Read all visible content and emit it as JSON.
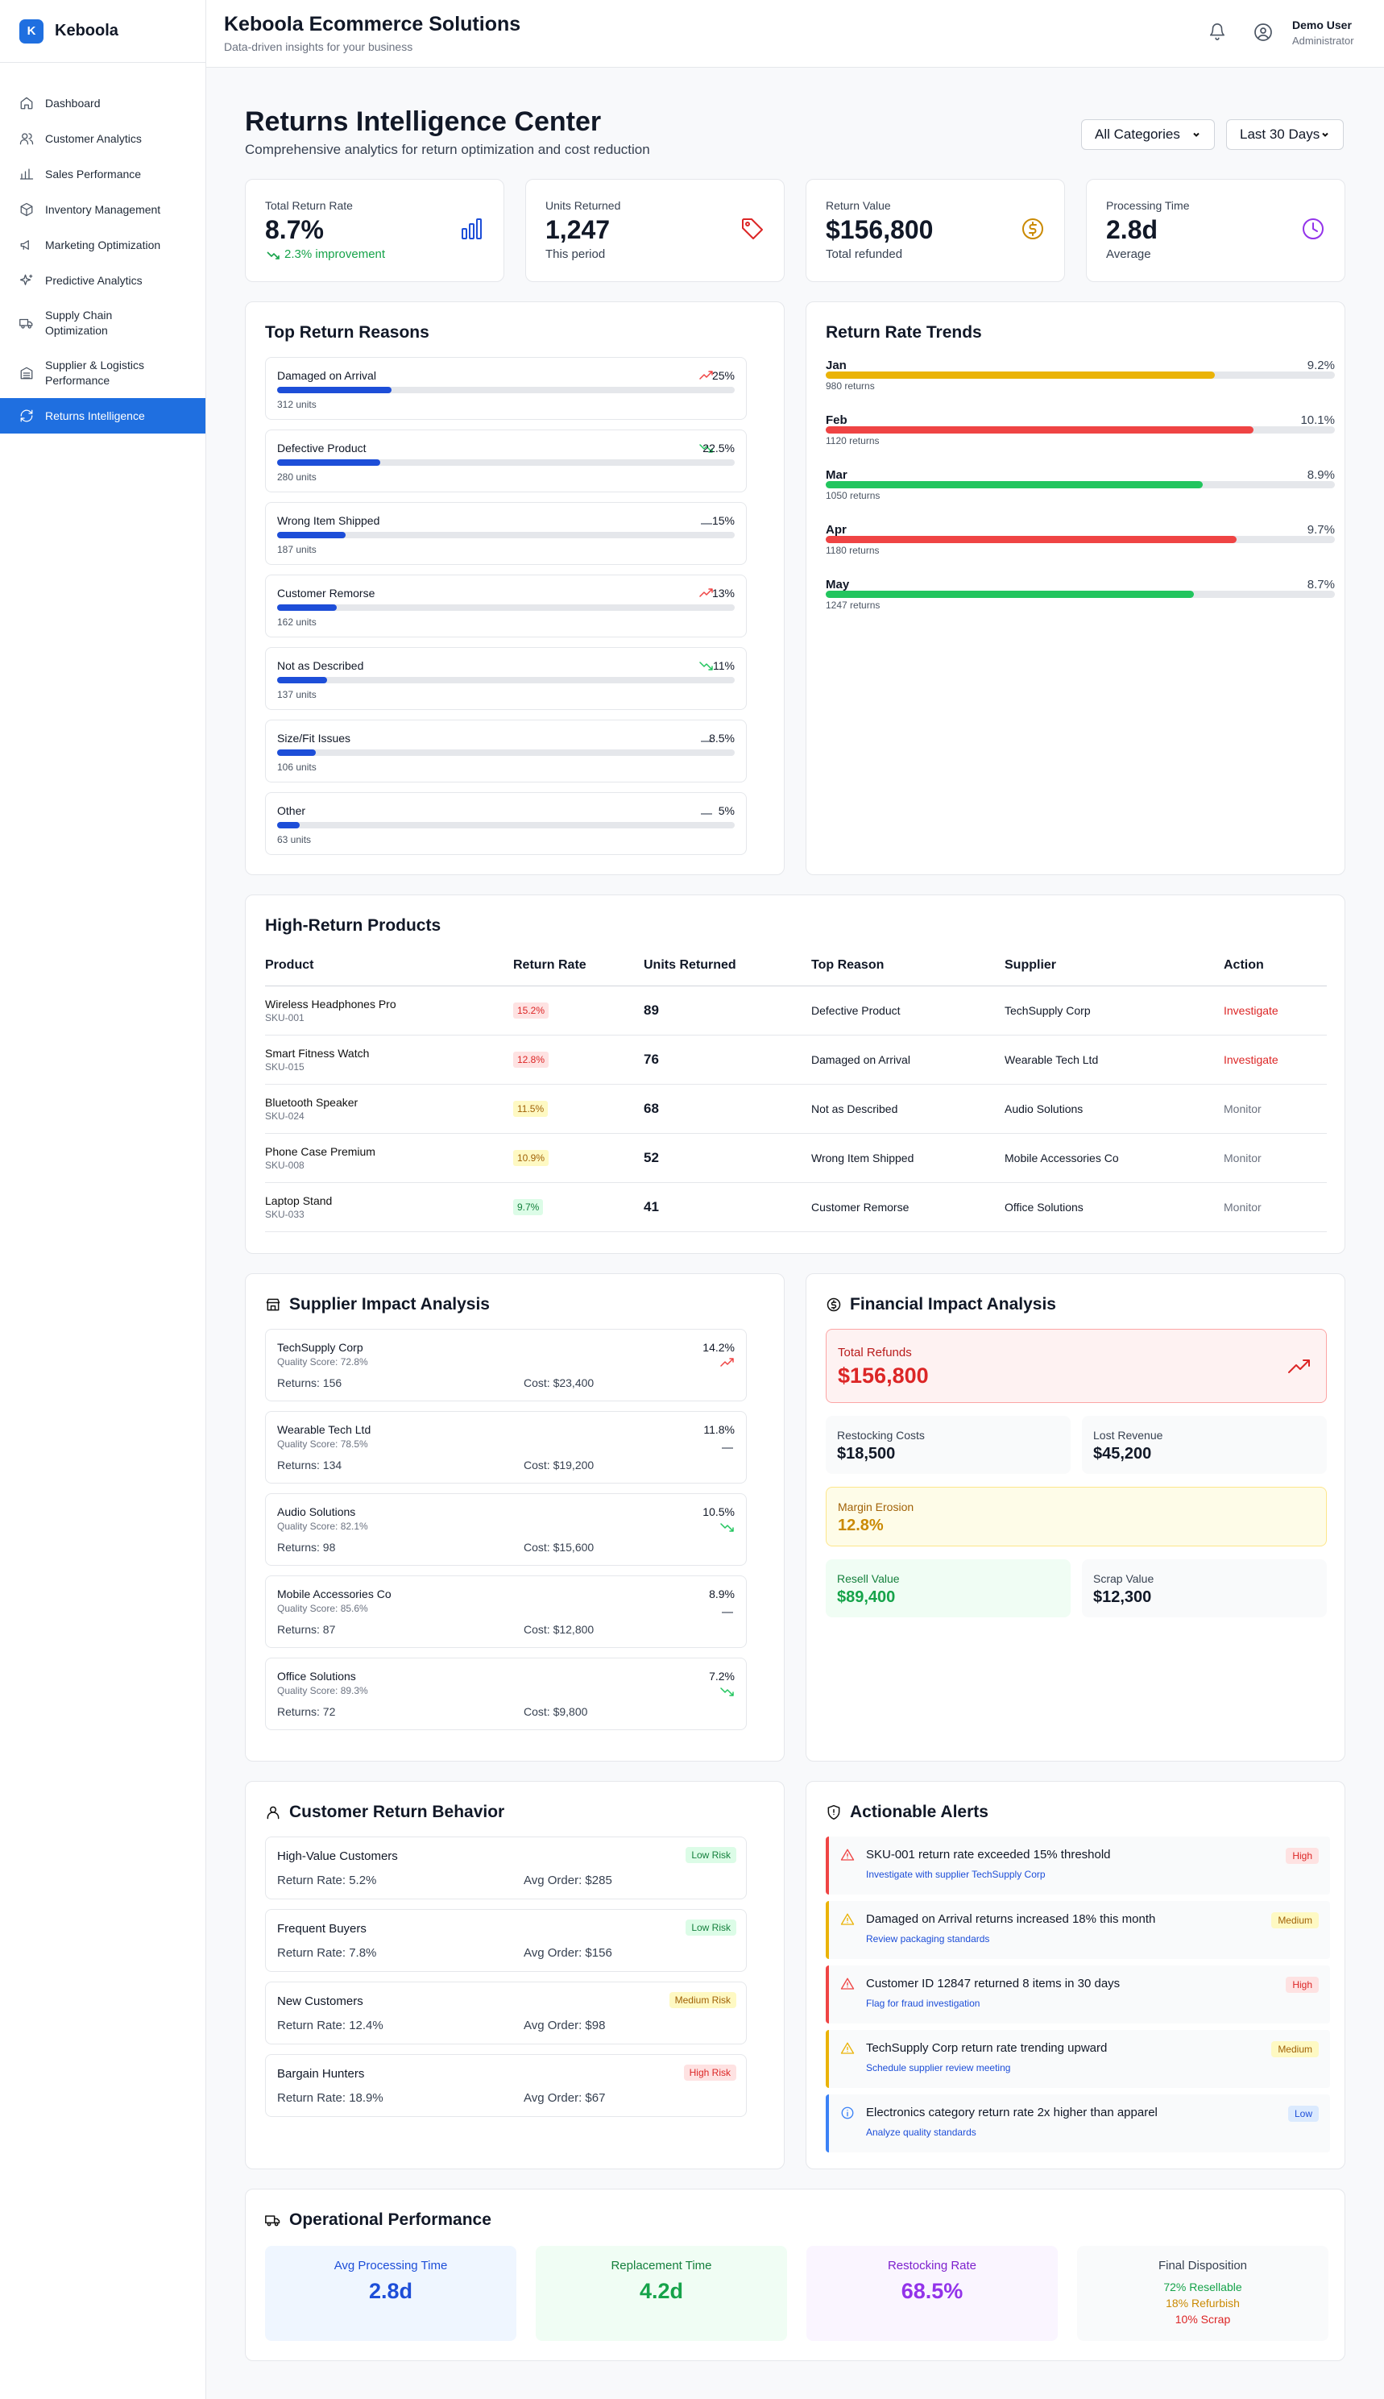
{
  "brand": {
    "logo": "K",
    "name": "Keboola"
  },
  "sidebar": {
    "items": [
      {
        "label": "Dashboard",
        "icon": "home-icon"
      },
      {
        "label": "Customer Analytics",
        "icon": "users-icon"
      },
      {
        "label": "Sales Performance",
        "icon": "bar-chart-icon"
      },
      {
        "label": "Inventory Management",
        "icon": "box-icon"
      },
      {
        "label": "Marketing Optimization",
        "icon": "megaphone-icon"
      },
      {
        "label": "Predictive Analytics",
        "icon": "sparkles-icon"
      },
      {
        "label": "Supply Chain Optimization",
        "icon": "truck-icon"
      },
      {
        "label": "Supplier & Logistics Performance",
        "icon": "building-icon"
      },
      {
        "label": "Returns Intelligence",
        "icon": "refresh-icon",
        "active": true
      }
    ]
  },
  "header": {
    "title": "Keboola Ecommerce Solutions",
    "subtitle": "Data-driven insights for your business",
    "user_name": "Demo User",
    "user_role": "Administrator"
  },
  "page": {
    "title": "Returns Intelligence Center",
    "subtitle": "Comprehensive analytics for return optimization and cost reduction",
    "filter_category": "All Categories",
    "filter_period": "Last 30 Days"
  },
  "kpis": [
    {
      "label": "Total Return Rate",
      "value": "8.7%",
      "sub": "2.3% improvement",
      "icon": "bar-chart-icon",
      "color": "#1d4ed8"
    },
    {
      "label": "Units Returned",
      "value": "1,247",
      "sub": "This period",
      "icon": "tag-icon",
      "color": "#dc2626"
    },
    {
      "label": "Return Value",
      "value": "$156,800",
      "sub": "Total refunded",
      "icon": "dollar-circle-icon",
      "color": "#ca8a04"
    },
    {
      "label": "Processing Time",
      "value": "2.8d",
      "sub": "Average",
      "icon": "clock-icon",
      "color": "#9333ea"
    }
  ],
  "reasons": {
    "title": "Top Return Reasons",
    "items": [
      {
        "name": "Damaged on Arrival",
        "pct": "25%",
        "units": "312 units",
        "fill": 25,
        "trend": "up"
      },
      {
        "name": "Defective Product",
        "pct": "22.5%",
        "units": "280 units",
        "fill": 22.5,
        "trend": "down"
      },
      {
        "name": "Wrong Item Shipped",
        "pct": "15%",
        "units": "187 units",
        "fill": 15,
        "trend": "flat"
      },
      {
        "name": "Customer Remorse",
        "pct": "13%",
        "units": "162 units",
        "fill": 13,
        "trend": "up"
      },
      {
        "name": "Not as Described",
        "pct": "11%",
        "units": "137 units",
        "fill": 11,
        "trend": "down"
      },
      {
        "name": "Size/Fit Issues",
        "pct": "8.5%",
        "units": "106 units",
        "fill": 8.5,
        "trend": "flat"
      },
      {
        "name": "Other",
        "pct": "5%",
        "units": "63 units",
        "fill": 5,
        "trend": "flat"
      }
    ]
  },
  "trends": {
    "title": "Return Rate Trends",
    "items": [
      {
        "month": "Jan",
        "rate": "9.2%",
        "returns": "980 returns",
        "fill": 0.765,
        "color": "#eab308"
      },
      {
        "month": "Feb",
        "rate": "10.1%",
        "returns": "1120 returns",
        "fill": 0.84,
        "color": "#ef4444"
      },
      {
        "month": "Mar",
        "rate": "8.9%",
        "returns": "1050 returns",
        "fill": 0.74,
        "color": "#22c55e"
      },
      {
        "month": "Apr",
        "rate": "9.7%",
        "returns": "1180 returns",
        "fill": 0.807,
        "color": "#ef4444"
      },
      {
        "month": "May",
        "rate": "8.7%",
        "returns": "1247 returns",
        "fill": 0.723,
        "color": "#22c55e"
      }
    ]
  },
  "products": {
    "title": "High-Return Products",
    "columns": [
      "Product",
      "Return Rate",
      "Units Returned",
      "Top Reason",
      "Supplier",
      "Action"
    ],
    "rows": [
      {
        "name": "Wireless Headphones Pro",
        "sku": "SKU-001",
        "rate": "15.2%",
        "level": "high",
        "units": "89",
        "reason": "Defective Product",
        "supplier": "TechSupply Corp",
        "action": "Investigate"
      },
      {
        "name": "Smart Fitness Watch",
        "sku": "SKU-015",
        "rate": "12.8%",
        "level": "high",
        "units": "76",
        "reason": "Damaged on Arrival",
        "supplier": "Wearable Tech Ltd",
        "action": "Investigate"
      },
      {
        "name": "Bluetooth Speaker",
        "sku": "SKU-024",
        "rate": "11.5%",
        "level": "medium",
        "units": "68",
        "reason": "Not as Described",
        "supplier": "Audio Solutions",
        "action": "Monitor"
      },
      {
        "name": "Phone Case Premium",
        "sku": "SKU-008",
        "rate": "10.9%",
        "level": "medium",
        "units": "52",
        "reason": "Wrong Item Shipped",
        "supplier": "Mobile Accessories Co",
        "action": "Monitor"
      },
      {
        "name": "Laptop Stand",
        "sku": "SKU-033",
        "rate": "9.7%",
        "level": "low",
        "units": "41",
        "reason": "Customer Remorse",
        "supplier": "Office Solutions",
        "action": "Monitor"
      }
    ]
  },
  "suppliers": {
    "title": "Supplier Impact Analysis",
    "items": [
      {
        "name": "TechSupply Corp",
        "quality": "Quality Score: 72.8%",
        "rate": "14.2%",
        "trend": "up",
        "returns": "Returns: 156",
        "cost": "Cost: $23,400"
      },
      {
        "name": "Wearable Tech Ltd",
        "quality": "Quality Score: 78.5%",
        "rate": "11.8%",
        "trend": "flat",
        "returns": "Returns: 134",
        "cost": "Cost: $19,200"
      },
      {
        "name": "Audio Solutions",
        "quality": "Quality Score: 82.1%",
        "rate": "10.5%",
        "trend": "down",
        "returns": "Returns: 98",
        "cost": "Cost: $15,600"
      },
      {
        "name": "Mobile Accessories Co",
        "quality": "Quality Score: 85.6%",
        "rate": "8.9%",
        "trend": "flat",
        "returns": "Returns: 87",
        "cost": "Cost: $12,800"
      },
      {
        "name": "Office Solutions",
        "quality": "Quality Score: 89.3%",
        "rate": "7.2%",
        "trend": "down",
        "returns": "Returns: 72",
        "cost": "Cost: $9,800"
      }
    ]
  },
  "financial": {
    "title": "Financial Impact Analysis",
    "total_refunds_label": "Total Refunds",
    "total_refunds": "$156,800",
    "restocking_label": "Restocking Costs",
    "restocking": "$18,500",
    "lost_revenue_label": "Lost Revenue",
    "lost_revenue": "$45,200",
    "margin_label": "Margin Erosion",
    "margin": "12.8%",
    "resell_label": "Resell Value",
    "resell": "$89,400",
    "scrap_label": "Scrap Value",
    "scrap": "$12,300"
  },
  "behavior": {
    "title": "Customer Return Behavior",
    "items": [
      {
        "name": "High-Value Customers",
        "risk": "Low Risk",
        "level": "low",
        "rate": "Return Rate: 5.2%",
        "order": "Avg Order: $285"
      },
      {
        "name": "Frequent Buyers",
        "risk": "Low Risk",
        "level": "low",
        "rate": "Return Rate: 7.8%",
        "order": "Avg Order: $156"
      },
      {
        "name": "New Customers",
        "risk": "Medium Risk",
        "level": "medium",
        "rate": "Return Rate: 12.4%",
        "order": "Avg Order: $98"
      },
      {
        "name": "Bargain Hunters",
        "risk": "High Risk",
        "level": "high",
        "rate": "Return Rate: 18.9%",
        "order": "Avg Order: $67"
      }
    ]
  },
  "alerts": {
    "title": "Actionable Alerts",
    "items": [
      {
        "text": "SKU-001 return rate exceeded 15% threshold",
        "action": "Investigate with supplier TechSupply Corp",
        "severity": "High",
        "level": "high"
      },
      {
        "text": "Damaged on Arrival returns increased 18% this month",
        "action": "Review packaging standards",
        "severity": "Medium",
        "level": "medium"
      },
      {
        "text": "Customer ID 12847 returned 8 items in 30 days",
        "action": "Flag for fraud investigation",
        "severity": "High",
        "level": "high"
      },
      {
        "text": "TechSupply Corp return rate trending upward",
        "action": "Schedule supplier review meeting",
        "severity": "Medium",
        "level": "medium"
      },
      {
        "text": "Electronics category return rate 2x higher than apparel",
        "action": "Analyze quality standards",
        "severity": "Low",
        "level": "low"
      }
    ]
  },
  "operational": {
    "title": "Operational Performance",
    "items": [
      {
        "label": "Avg Processing Time",
        "value": "2.8d"
      },
      {
        "label": "Replacement Time",
        "value": "4.2d"
      },
      {
        "label": "Restocking Rate",
        "value": "68.5%"
      }
    ],
    "disposition_label": "Final Disposition",
    "disposition": [
      "72% Resellable",
      "18% Refurbish",
      "10% Scrap"
    ]
  },
  "colors": {
    "accent": "#1f6fe0",
    "high": "#dc2626",
    "medium": "#ca8a04",
    "low": "#16a34a"
  }
}
